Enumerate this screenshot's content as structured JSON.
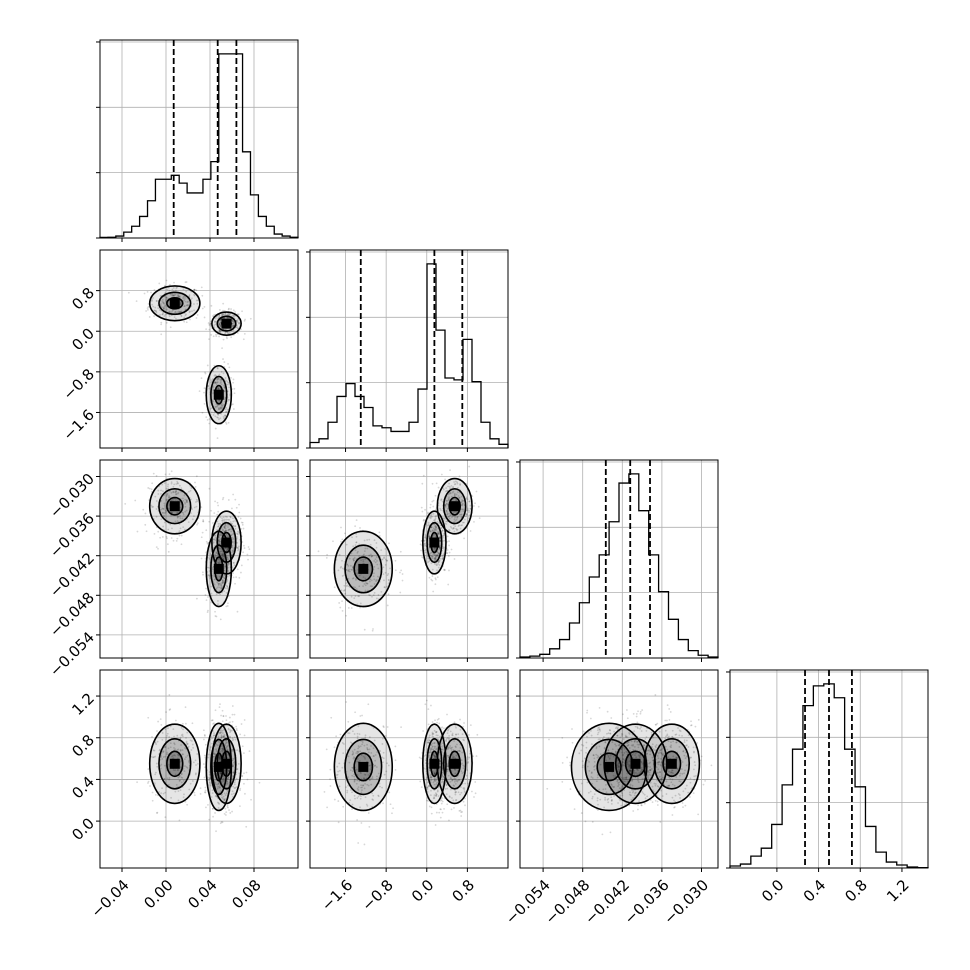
{
  "chart_data": {
    "type": "corner",
    "title": "",
    "parameters": [
      {
        "id": "p0",
        "label": "",
        "range": [
          -0.06,
          0.12
        ],
        "ticks": [
          -0.04,
          0.0,
          0.04,
          0.08
        ],
        "tick_labels": [
          "−0.04",
          "0.00",
          "0.04",
          "0.08"
        ],
        "quantiles": [
          0.007,
          0.047,
          0.064
        ],
        "hist": [
          0.3,
          0.4,
          1,
          3,
          6,
          11,
          19,
          30,
          30,
          32,
          28,
          23,
          23,
          30,
          39,
          94,
          94,
          94,
          44,
          22,
          11,
          6,
          2,
          1,
          0.4
        ]
      },
      {
        "id": "p1",
        "label": "",
        "range": [
          -2.3,
          1.6
        ],
        "ticks": [
          -1.6,
          -0.8,
          0.0,
          0.8
        ],
        "tick_labels": [
          "−1.6",
          "−0.8",
          "0.0",
          "0.8"
        ],
        "quantiles": [
          -1.3,
          0.15,
          0.7
        ],
        "hist": [
          3,
          5,
          14,
          28,
          35,
          28,
          22,
          12,
          11,
          9,
          9,
          14,
          32,
          100,
          64,
          38,
          37,
          59,
          36,
          14,
          5,
          2
        ]
      },
      {
        "id": "p2",
        "label": "",
        "range": [
          -0.0575,
          -0.0275
        ],
        "ticks": [
          -0.054,
          -0.048,
          -0.042,
          -0.036,
          -0.03
        ],
        "tick_labels": [
          "−0.054",
          "−0.048",
          "−0.042",
          "−0.036",
          "−0.030"
        ],
        "quantiles": [
          -0.0445,
          -0.0408,
          -0.0378
        ],
        "hist": [
          0.5,
          1,
          2,
          5,
          10,
          19,
          30,
          44,
          56,
          74,
          95,
          100,
          80,
          56,
          36,
          21,
          10,
          4,
          1.5,
          0.5
        ]
      },
      {
        "id": "p3",
        "label": "",
        "range": [
          -0.45,
          1.45
        ],
        "ticks": [
          0.0,
          0.4,
          0.8,
          1.2
        ],
        "tick_labels": [
          "0.0",
          "0.4",
          "0.8",
          "1.2"
        ],
        "quantiles": [
          0.27,
          0.5,
          0.72
        ],
        "hist": [
          1,
          2,
          6,
          10,
          22,
          42,
          60,
          82,
          92,
          93,
          86,
          60,
          41,
          21,
          8,
          3,
          1.5,
          0.5,
          0.2
        ]
      }
    ],
    "modes": [
      {
        "weight": 0.3,
        "mean": [
          0.008,
          0.55,
          -0.0345,
          0.55
        ],
        "sd": [
          0.012,
          0.18,
          0.0022,
          0.2
        ]
      },
      {
        "weight": 0.4,
        "mean": [
          0.055,
          0.15,
          -0.04,
          0.55
        ],
        "sd": [
          0.007,
          0.12,
          0.0025,
          0.2
        ]
      },
      {
        "weight": 0.3,
        "mean": [
          0.048,
          -1.25,
          -0.044,
          0.52
        ],
        "sd": [
          0.006,
          0.3,
          0.003,
          0.22
        ]
      }
    ],
    "grid": true,
    "legend": "none"
  }
}
